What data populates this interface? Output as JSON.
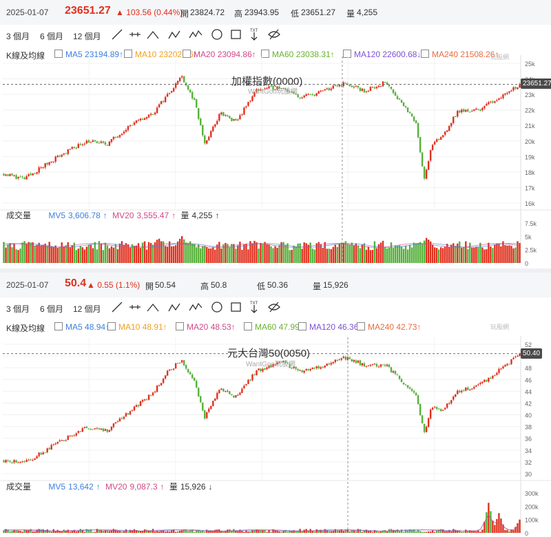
{
  "colors": {
    "up": "#e0301e",
    "down": "#55b039",
    "ma5": "#3d7fe0",
    "ma10": "#f0a020",
    "ma20": "#d0488a",
    "ma60": "#6ab12d",
    "ma120": "#7d4fd8",
    "ma240": "#ec6b3c",
    "mv5": "#3d7fe0",
    "mv20": "#d0488a"
  },
  "toolbar": {
    "ranges": [
      "3 個月",
      "6 個月",
      "12 個月"
    ],
    "tools": [
      "line-tool-icon",
      "horizontal-line-tool-icon",
      "triangle-tool-icon",
      "abc-pattern-tool-icon",
      "abcd-pattern-tool-icon",
      "circle-tool-icon",
      "rectangle-tool-icon",
      "text-tool-icon",
      "hide-drawings-icon"
    ],
    "text_tool_label": "TXT"
  },
  "logo_text": "玩股網",
  "panels": [
    {
      "quote": {
        "date": "2025-01-07",
        "close": "23651.27",
        "change": "▲ 103.56 (0.44%)",
        "open_label": "開",
        "open": "23824.72",
        "high_label": "高",
        "high": "23943.95",
        "low_label": "低",
        "low": "23651.27",
        "vol_label": "量",
        "vol": "4,255"
      },
      "ma_legend": {
        "label": "K線及均線",
        "items": [
          {
            "name": "MA5",
            "value": "23194.89",
            "arrow": "↑"
          },
          {
            "name": "MA10",
            "value": "23202.76",
            "arrow": "↑"
          },
          {
            "name": "MA20",
            "value": "23094.86",
            "arrow": "↑"
          },
          {
            "name": "MA60",
            "value": "23038.31",
            "arrow": "↑"
          },
          {
            "name": "MA120",
            "value": "22600.68",
            "arrow": "↓"
          },
          {
            "name": "MA240",
            "value": "21508.26",
            "arrow": "↑"
          }
        ]
      },
      "title": "加權指數(0000)",
      "watermark": "WantGoo玩股網",
      "price_tag": "23651.27",
      "vol_legend": {
        "label": "成交量",
        "mv5": "MV5",
        "mv5_value": "3,606.78",
        "mv5_arrow": "↑",
        "mv20": "MV20",
        "mv20_value": "3,555.47",
        "mv20_arrow": "↑",
        "vol": "量",
        "vol_value": "4,255",
        "vol_arrow": "↑"
      }
    },
    {
      "quote": {
        "date": "2025-01-07",
        "close": "50.4",
        "change": "▲ 0.55 (1.1%)",
        "open_label": "開",
        "open": "50.54",
        "high_label": "高",
        "high": "50.8",
        "low_label": "低",
        "low": "50.36",
        "vol_label": "量",
        "vol": "15,926"
      },
      "ma_legend": {
        "label": "K線及均線",
        "items": [
          {
            "name": "MA5",
            "value": "48.94",
            "arrow": "↑"
          },
          {
            "name": "MA10",
            "value": "48.91",
            "arrow": "↑"
          },
          {
            "name": "MA20",
            "value": "48.53",
            "arrow": "↑"
          },
          {
            "name": "MA60",
            "value": "47.99",
            "arrow": "↑"
          },
          {
            "name": "MA120",
            "value": "46.36",
            "arrow": "↑"
          },
          {
            "name": "MA240",
            "value": "42.73",
            "arrow": "↑"
          }
        ]
      },
      "title": "元大台灣50(0050)",
      "watermark": "WantGoo玩股網",
      "price_tag": "50.40",
      "vol_legend": {
        "label": "成交量",
        "mv5": "MV5",
        "mv5_value": "13,642",
        "mv5_arrow": "↑",
        "mv20": "MV20",
        "mv20_value": "9,087.3",
        "mv20_arrow": "↑",
        "vol": "量",
        "vol_value": "15,926",
        "vol_arrow": "↓"
      }
    }
  ],
  "chart_data": [
    {
      "type": "candlestick",
      "series_name": "加權指數(0000)",
      "ylim": [
        16000,
        25000
      ],
      "y_ticks": [
        16000,
        17000,
        18000,
        19000,
        20000,
        21000,
        22000,
        23000,
        24000,
        25000
      ],
      "y_tick_labels": [
        "16k",
        "17k",
        "18k",
        "19k",
        "20k",
        "21k",
        "22k",
        "23k",
        "24k",
        "25k"
      ],
      "last_close": 23651.27,
      "keypoints": [
        [
          0,
          17900
        ],
        [
          0.04,
          17550
        ],
        [
          0.06,
          18000
        ],
        [
          0.1,
          18900
        ],
        [
          0.16,
          20000
        ],
        [
          0.2,
          19800
        ],
        [
          0.24,
          20900
        ],
        [
          0.29,
          21800
        ],
        [
          0.32,
          23100
        ],
        [
          0.345,
          24200
        ],
        [
          0.37,
          22500
        ],
        [
          0.39,
          19800
        ],
        [
          0.42,
          21800
        ],
        [
          0.45,
          21200
        ],
        [
          0.49,
          23300
        ],
        [
          0.54,
          23500
        ],
        [
          0.57,
          22800
        ],
        [
          0.6,
          23000
        ],
        [
          0.66,
          23700
        ],
        [
          0.7,
          23200
        ],
        [
          0.74,
          23800
        ],
        [
          0.78,
          22100
        ],
        [
          0.8,
          21000
        ],
        [
          0.815,
          17600
        ],
        [
          0.83,
          19700
        ],
        [
          0.85,
          20300
        ],
        [
          0.88,
          21900
        ],
        [
          0.92,
          22000
        ],
        [
          0.96,
          22800
        ],
        [
          1,
          23651
        ]
      ],
      "volume": {
        "ylim": [
          0,
          7500
        ],
        "y_ticks": [
          0,
          2500,
          5000,
          7500
        ],
        "y_tick_labels": [
          "0",
          "2.5k",
          "5k",
          "7.5k"
        ],
        "base": 3300,
        "amp": 900,
        "peaks": [
          [
            0.3,
            4700
          ],
          [
            0.345,
            5100
          ],
          [
            0.82,
            4800
          ]
        ]
      }
    },
    {
      "type": "candlestick",
      "series_name": "元大台灣50(0050)",
      "ylim": [
        30,
        52
      ],
      "y_ticks": [
        30,
        32,
        34,
        36,
        38,
        40,
        42,
        44,
        46,
        48,
        50,
        52
      ],
      "y_tick_labels": [
        "30",
        "32",
        "34",
        "36",
        "38",
        "40",
        "42",
        "44",
        "46",
        "48",
        "50",
        "52"
      ],
      "last_close": 50.4,
      "keypoints": [
        [
          0,
          32.3
        ],
        [
          0.04,
          31.8
        ],
        [
          0.06,
          32.8
        ],
        [
          0.1,
          35.0
        ],
        [
          0.16,
          37.8
        ],
        [
          0.2,
          37.3
        ],
        [
          0.24,
          40.2
        ],
        [
          0.29,
          43.8
        ],
        [
          0.32,
          47.5
        ],
        [
          0.345,
          49.3
        ],
        [
          0.37,
          45.5
        ],
        [
          0.39,
          39.5
        ],
        [
          0.42,
          44.5
        ],
        [
          0.45,
          43.0
        ],
        [
          0.49,
          47.5
        ],
        [
          0.54,
          49.0
        ],
        [
          0.57,
          47.5
        ],
        [
          0.6,
          47.8
        ],
        [
          0.66,
          49.8
        ],
        [
          0.7,
          48.5
        ],
        [
          0.74,
          48.5
        ],
        [
          0.78,
          45.0
        ],
        [
          0.8,
          43.0
        ],
        [
          0.815,
          37.0
        ],
        [
          0.83,
          41.5
        ],
        [
          0.85,
          40.5
        ],
        [
          0.88,
          44.0
        ],
        [
          0.92,
          45.0
        ],
        [
          0.96,
          47.5
        ],
        [
          1,
          50.4
        ]
      ],
      "volume": {
        "ylim": [
          0,
          300000
        ],
        "y_ticks": [
          0,
          100000,
          200000,
          300000
        ],
        "y_tick_labels": [
          "0",
          "100k",
          "200k",
          "300k"
        ],
        "base": 18000,
        "amp": 12000,
        "peaks": [
          [
            0.94,
            230000
          ],
          [
            0.96,
            150000
          ],
          [
            1.0,
            100000
          ]
        ]
      }
    }
  ]
}
